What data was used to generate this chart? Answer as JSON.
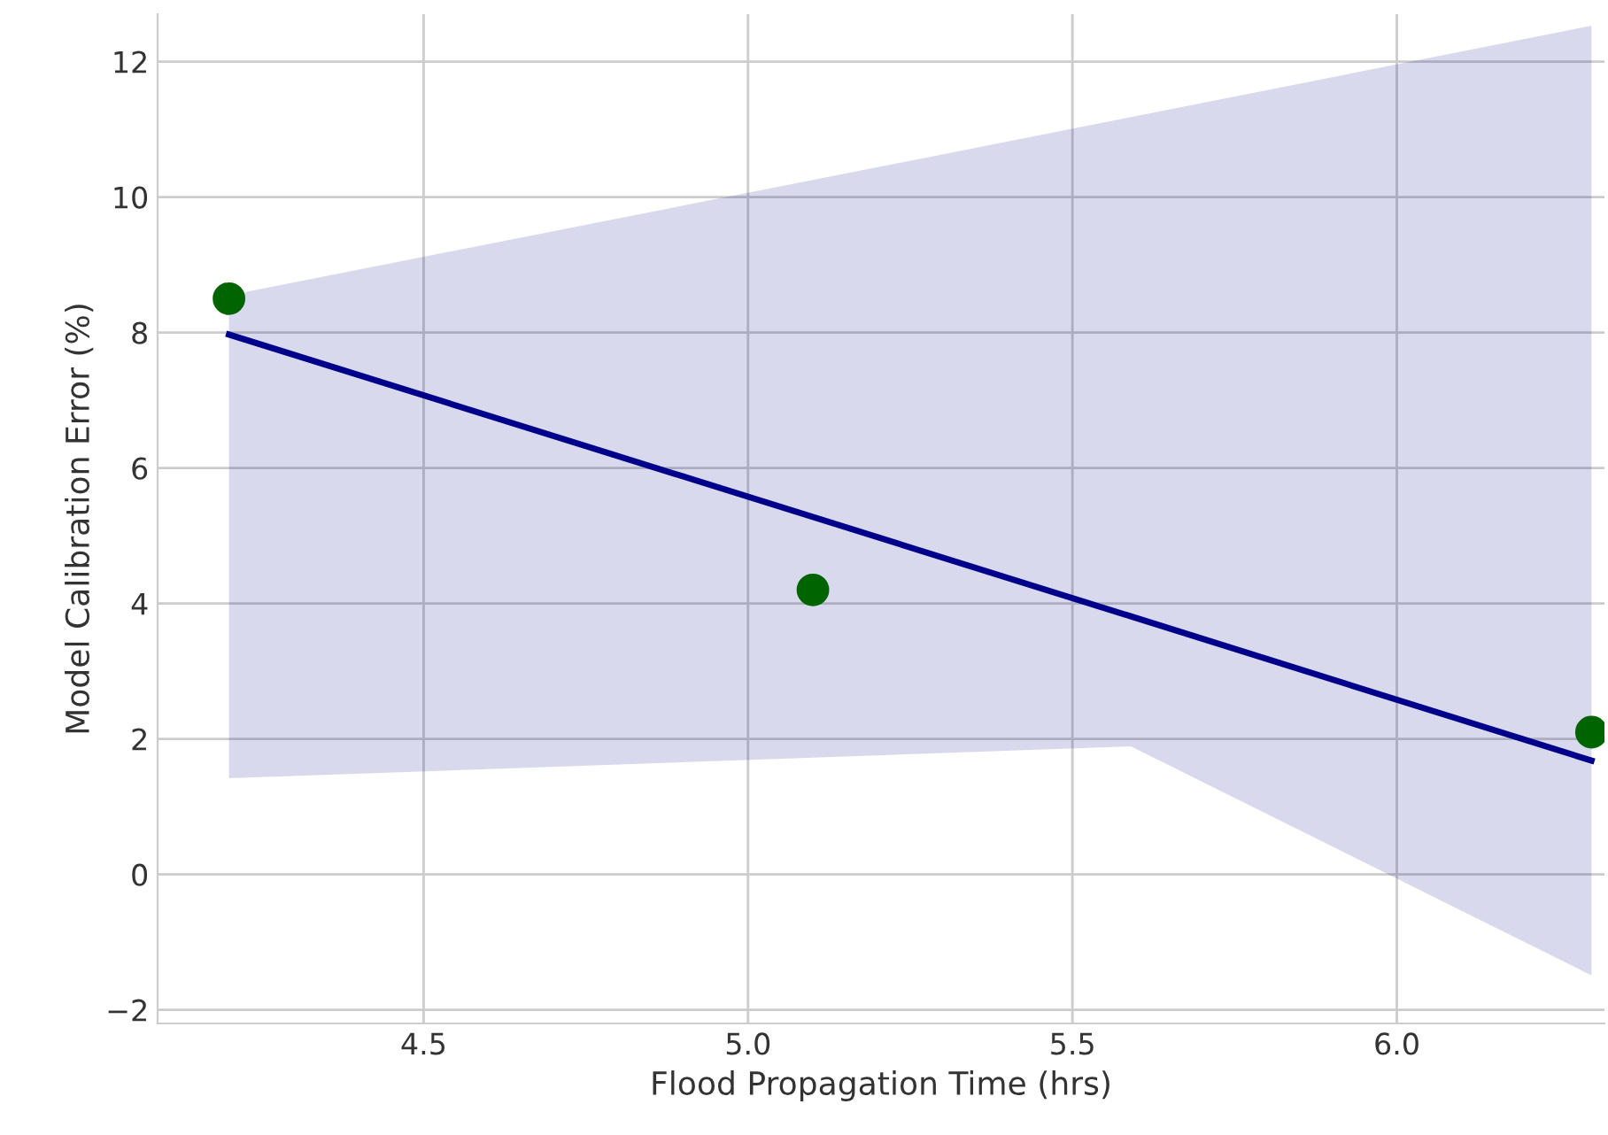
{
  "chart_data": {
    "type": "scatter",
    "xlabel": "Flood Propagation Time (hrs)",
    "ylabel": "Model Calibration Error (%)",
    "series": [
      {
        "color": "#006400",
        "x": [
          4.2,
          5.1,
          6.3
        ],
        "values": [
          8.5,
          4.2,
          2.1
        ],
        "marker": "circle"
      },
      {
        "type": "line",
        "color": "#00008b",
        "x": [
          4.2,
          5.59,
          6.3
        ],
        "values": [
          7.97,
          3.81,
          1.68
        ],
        "lower": [
          1.42,
          1.89,
          -1.49
        ],
        "upper": [
          8.55,
          11.18,
          12.53
        ]
      }
    ],
    "xlim": [
      4.09,
      6.32
    ],
    "ylim": [
      -2.2,
      12.7
    ],
    "xticks": [
      4.5,
      {
        "value": 5,
        "label": "5.0"
      },
      5.5,
      {
        "value": 6,
        "label": "6.0"
      }
    ],
    "yticks": [
      -2,
      0,
      2,
      4,
      6,
      8,
      10,
      12
    ],
    "grid": true
  }
}
